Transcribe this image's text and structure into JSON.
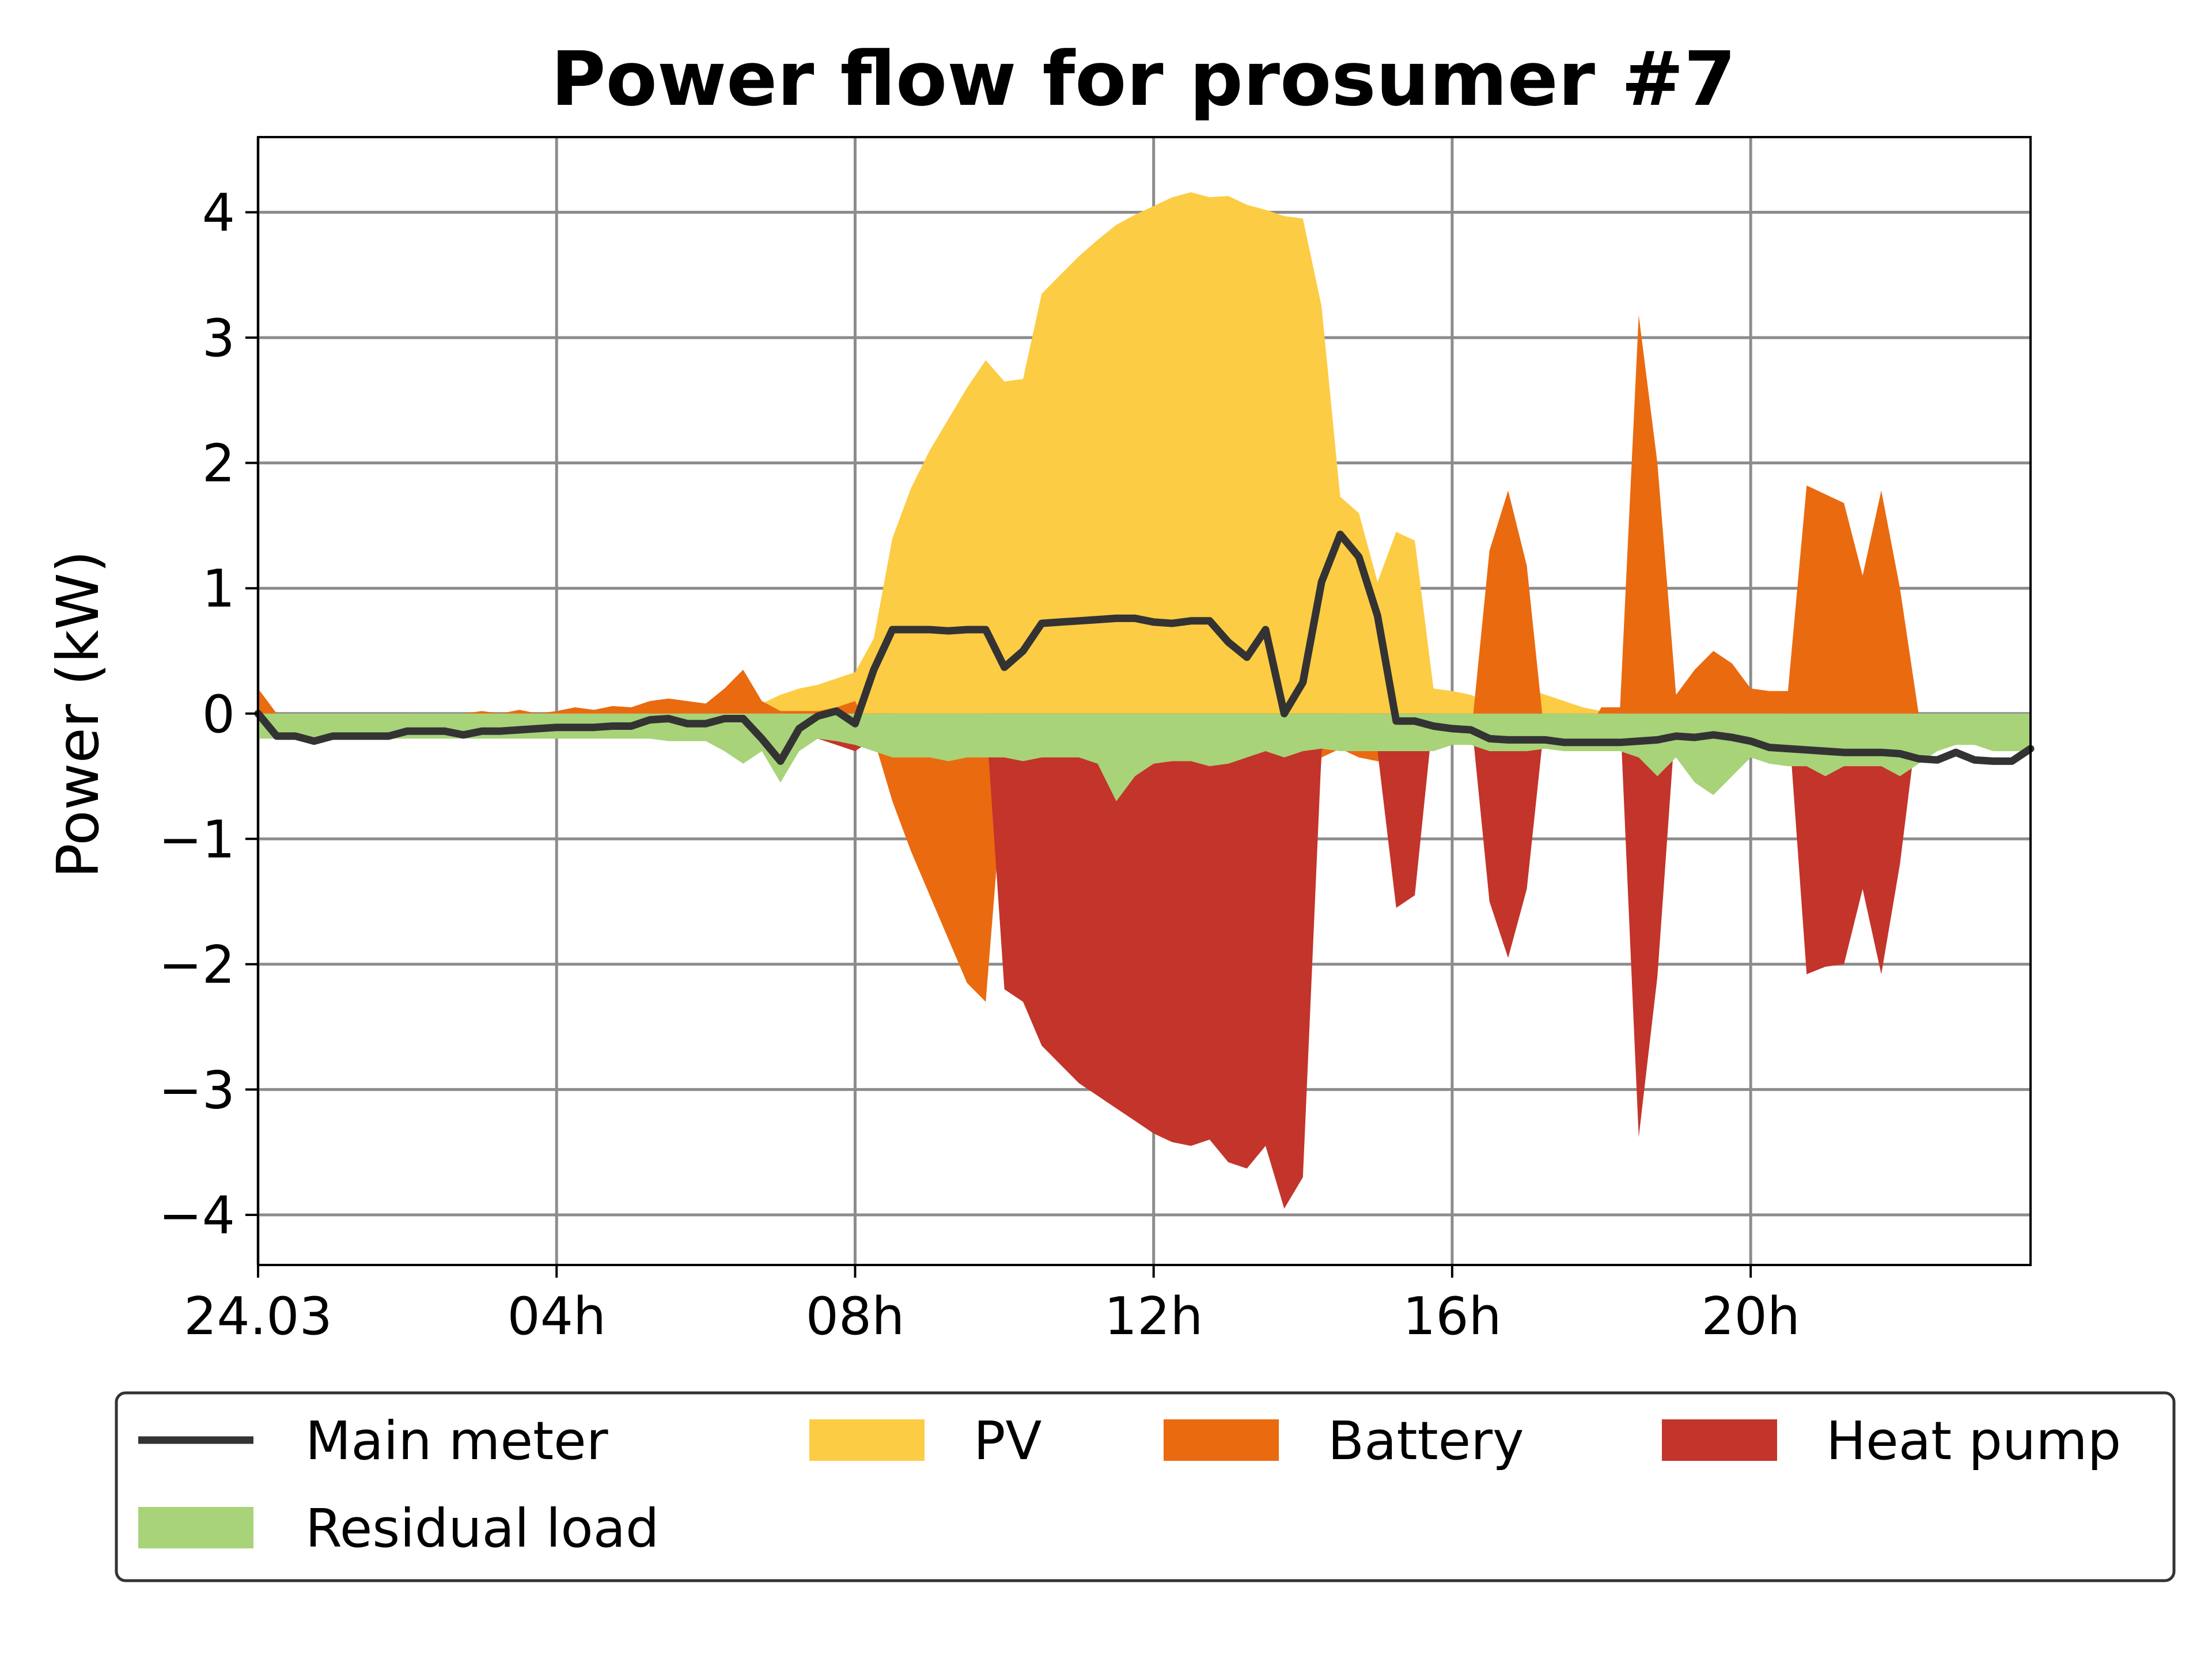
{
  "chart_data": {
    "type": "area",
    "title": "Power flow for prosumer #7",
    "ylabel": "Power (kW)",
    "xlabel": "",
    "xlim": [
      0,
      23.75
    ],
    "ylim": [
      -4.4,
      4.6
    ],
    "xticks": [
      {
        "x": 0,
        "label": "24.03"
      },
      {
        "x": 4,
        "label": "04h"
      },
      {
        "x": 8,
        "label": "08h"
      },
      {
        "x": 12,
        "label": "12h"
      },
      {
        "x": 16,
        "label": "16h"
      },
      {
        "x": 20,
        "label": "20h"
      }
    ],
    "yticks": [
      {
        "y": 4,
        "label": "4"
      },
      {
        "y": 3,
        "label": "3"
      },
      {
        "y": 2,
        "label": "2"
      },
      {
        "y": 1,
        "label": "1"
      },
      {
        "y": 0,
        "label": "0"
      },
      {
        "y": -1,
        "label": "−1"
      },
      {
        "y": -2,
        "label": "−2"
      },
      {
        "y": -3,
        "label": "−3"
      },
      {
        "y": -4,
        "label": "−4"
      }
    ],
    "grid": true,
    "legend_position": "bottom",
    "x": [
      0,
      0.25,
      0.5,
      0.75,
      1,
      1.25,
      1.5,
      1.75,
      2,
      2.25,
      2.5,
      2.75,
      3,
      3.25,
      3.5,
      3.75,
      4,
      4.25,
      4.5,
      4.75,
      5,
      5.25,
      5.5,
      5.75,
      6,
      6.25,
      6.5,
      6.75,
      7,
      7.25,
      7.5,
      7.75,
      8,
      8.25,
      8.5,
      8.75,
      9,
      9.25,
      9.5,
      9.75,
      10,
      10.25,
      10.5,
      10.75,
      11,
      11.25,
      11.5,
      11.75,
      12,
      12.25,
      12.5,
      12.75,
      13,
      13.25,
      13.5,
      13.75,
      14,
      14.25,
      14.5,
      14.75,
      15,
      15.25,
      15.5,
      15.75,
      16,
      16.25,
      16.5,
      16.75,
      17,
      17.25,
      17.5,
      17.75,
      18,
      18.25,
      18.5,
      18.75,
      19,
      19.25,
      19.5,
      19.75,
      20,
      20.25,
      20.5,
      20.75,
      21,
      21.25,
      21.5,
      21.75,
      22,
      22.25,
      22.5,
      22.75,
      23,
      23.25,
      23.5,
      23.75
    ],
    "series": [
      {
        "name": "Main meter",
        "style": "line",
        "color": "#333333",
        "values": [
          0,
          -0.18,
          -0.18,
          -0.22,
          -0.18,
          -0.18,
          -0.18,
          -0.18,
          -0.14,
          -0.14,
          -0.14,
          -0.17,
          -0.14,
          -0.14,
          -0.13,
          -0.12,
          -0.11,
          -0.11,
          -0.11,
          -0.1,
          -0.1,
          -0.05,
          -0.04,
          -0.08,
          -0.08,
          -0.04,
          -0.04,
          -0.2,
          -0.38,
          -0.12,
          -0.02,
          0.02,
          -0.08,
          0.35,
          0.67,
          0.67,
          0.67,
          0.66,
          0.67,
          0.67,
          0.37,
          0.5,
          0.72,
          0.73,
          0.74,
          0.75,
          0.76,
          0.76,
          0.73,
          0.72,
          0.74,
          0.74,
          0.57,
          0.45,
          0.67,
          0,
          0.25,
          1.05,
          1.43,
          1.25,
          0.78,
          -0.06,
          -0.06,
          -0.1,
          -0.12,
          -0.13,
          -0.2,
          -0.21,
          -0.21,
          -0.21,
          -0.23,
          -0.23,
          -0.23,
          -0.23,
          -0.22,
          -0.21,
          -0.18,
          -0.19,
          -0.17,
          -0.19,
          -0.22,
          -0.27,
          -0.28,
          -0.29,
          -0.3,
          -0.31,
          -0.31,
          -0.31,
          -0.32,
          -0.36,
          -0.37,
          -0.31,
          -0.37,
          -0.38,
          -0.38,
          -0.28
        ]
      },
      {
        "name": "PV",
        "style": "area",
        "color": "#fdcc45",
        "values": [
          0,
          0,
          0,
          0,
          0,
          0,
          0,
          0,
          0,
          0,
          0,
          0,
          0,
          0,
          0,
          0,
          0,
          0,
          0,
          0,
          0,
          0,
          0,
          0,
          0,
          0,
          0,
          0.08,
          0.15,
          0.2,
          0.23,
          0.28,
          0.33,
          0.6,
          1.4,
          1.8,
          2.1,
          2.35,
          2.6,
          2.82,
          2.65,
          2.67,
          3.35,
          3.5,
          3.65,
          3.78,
          3.9,
          3.98,
          4.05,
          4.12,
          4.16,
          4.12,
          4.13,
          4.06,
          4.02,
          3.97,
          3.95,
          3.25,
          1.73,
          1.6,
          1.05,
          1.45,
          1.38,
          0.2,
          0.18,
          0.15,
          0.08,
          0.68,
          0.2,
          0.15,
          0.1,
          0.05,
          0.02,
          0,
          0,
          0,
          0,
          0,
          0,
          0,
          0,
          0,
          0,
          0,
          0,
          0,
          0,
          0,
          0,
          0,
          0,
          0,
          0,
          0,
          0,
          0
        ]
      },
      {
        "name": "Battery",
        "style": "area",
        "color": "#ea6a10",
        "values": [
          0.2,
          0,
          -0.05,
          -0.15,
          -0.05,
          -0.05,
          -0.05,
          -0.05,
          0,
          0,
          0,
          0,
          0.02,
          0,
          0.03,
          0,
          0.02,
          0.05,
          0.03,
          0.06,
          0.05,
          0.1,
          0.12,
          0.1,
          0.08,
          0.2,
          0.35,
          0.1,
          0.02,
          0.02,
          0.02,
          0.05,
          0.1,
          -0.2,
          -0.7,
          -1.1,
          -1.45,
          -1.8,
          -2.15,
          -2.3,
          -0.45,
          -0.6,
          -0.65,
          -0.8,
          -1.05,
          -1.3,
          -1.55,
          -1.75,
          -1.9,
          -2.05,
          -2.05,
          -0.35,
          -0.4,
          -0.45,
          -0.55,
          -1.7,
          -2.6,
          -0.35,
          -0.28,
          -0.35,
          -0.38,
          -0.38,
          -0.35,
          -0.25,
          -0.22,
          -0.2,
          1.3,
          1.78,
          1.18,
          -0.25,
          -0.2,
          -0.2,
          0.05,
          0.05,
          3.18,
          2.0,
          0.15,
          0.35,
          0.5,
          0.4,
          0.2,
          0.18,
          0.18,
          1.82,
          1.75,
          1.68,
          1.1,
          1.78,
          1.0,
          0,
          0,
          0,
          0,
          0,
          0,
          0
        ]
      },
      {
        "name": "Heat pump",
        "style": "area",
        "color": "#c3342a",
        "values": [
          0,
          0,
          0,
          0,
          0,
          0,
          0,
          0,
          0,
          0,
          0,
          0,
          0,
          0,
          0,
          0,
          0,
          0,
          0,
          0,
          0,
          0,
          0,
          0,
          0,
          0,
          0,
          0,
          0,
          -0.15,
          -0.2,
          -0.25,
          -0.3,
          -0.2,
          0,
          0,
          0,
          0,
          0,
          0,
          -2.2,
          -2.3,
          -2.65,
          -2.8,
          -2.95,
          -3.05,
          -3.15,
          -3.25,
          -3.35,
          -3.42,
          -3.45,
          -3.4,
          -3.58,
          -3.63,
          -3.45,
          -3.95,
          -3.7,
          -0.3,
          0,
          0,
          -0.3,
          -1.55,
          -1.45,
          0,
          0,
          0,
          -1.5,
          -1.95,
          -1.4,
          0,
          0,
          0,
          0,
          0,
          -3.38,
          -2.1,
          0,
          0,
          0,
          0,
          0,
          0,
          0,
          -2.08,
          -2.02,
          -2.0,
          -1.4,
          -2.08,
          -1.2,
          0,
          0,
          0,
          0,
          0,
          0,
          0
        ]
      },
      {
        "name": "Residual load",
        "style": "area",
        "color": "#a8d379",
        "values": [
          -0.2,
          -0.2,
          -0.2,
          -0.2,
          -0.2,
          -0.2,
          -0.2,
          -0.2,
          -0.2,
          -0.2,
          -0.2,
          -0.2,
          -0.2,
          -0.2,
          -0.2,
          -0.2,
          -0.2,
          -0.2,
          -0.2,
          -0.2,
          -0.2,
          -0.2,
          -0.22,
          -0.22,
          -0.22,
          -0.3,
          -0.4,
          -0.3,
          -0.55,
          -0.3,
          -0.2,
          -0.22,
          -0.25,
          -0.3,
          -0.35,
          -0.35,
          -0.35,
          -0.38,
          -0.35,
          -0.35,
          -0.35,
          -0.38,
          -0.35,
          -0.35,
          -0.35,
          -0.4,
          -0.7,
          -0.5,
          -0.4,
          -0.38,
          -0.38,
          -0.42,
          -0.4,
          -0.35,
          -0.3,
          -0.35,
          -0.3,
          -0.28,
          -0.3,
          -0.3,
          -0.3,
          -0.3,
          -0.3,
          -0.3,
          -0.25,
          -0.25,
          -0.3,
          -0.3,
          -0.3,
          -0.28,
          -0.3,
          -0.3,
          -0.3,
          -0.3,
          -0.35,
          -0.5,
          -0.35,
          -0.55,
          -0.65,
          -0.5,
          -0.35,
          -0.4,
          -0.42,
          -0.42,
          -0.5,
          -0.42,
          -0.42,
          -0.42,
          -0.5,
          -0.4,
          -0.3,
          -0.25,
          -0.25,
          -0.3,
          -0.3,
          -0.3
        ]
      }
    ]
  }
}
